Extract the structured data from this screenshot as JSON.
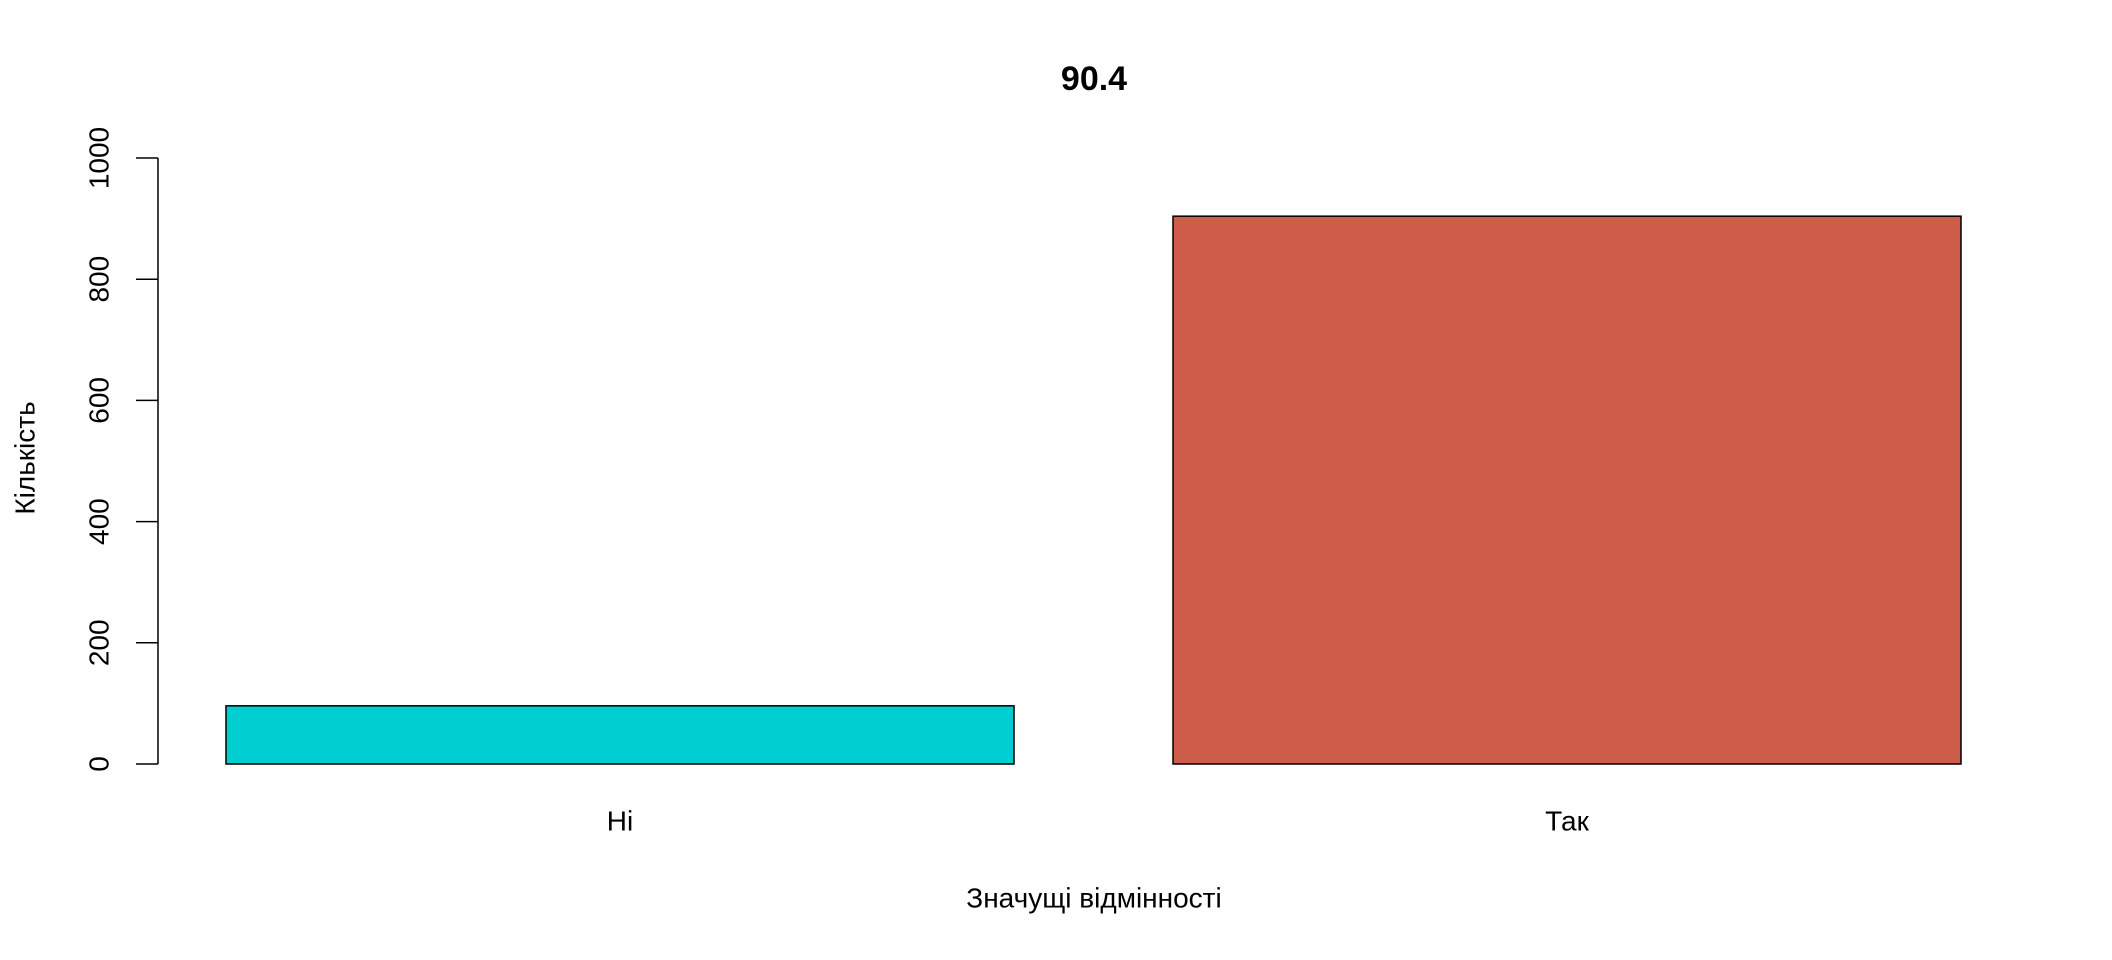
{
  "chart_data": {
    "type": "bar",
    "title": "90.4",
    "x_label": "Значущі відмінності",
    "y_label": "Кількість",
    "categories": [
      "Ні",
      "Так"
    ],
    "values": [
      96,
      904
    ],
    "colors": [
      "#00CED1",
      "#CD5C48"
    ],
    "ylim": [
      0,
      1000
    ],
    "yticks": [
      0,
      200,
      400,
      600,
      800,
      1000
    ]
  }
}
